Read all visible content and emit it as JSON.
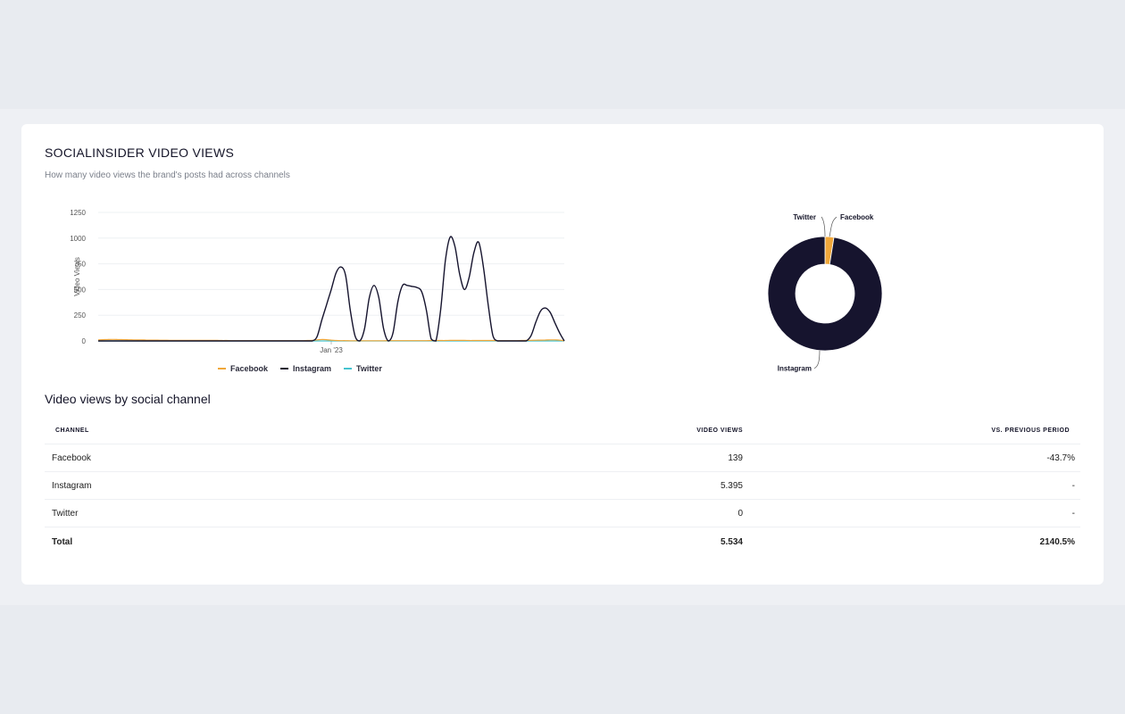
{
  "header": {
    "title": "SOCIALINSIDER VIDEO VIEWS",
    "subtitle": "How many video views the brand's posts had across channels"
  },
  "colors": {
    "facebook": "#f0a73a",
    "instagram": "#16142e",
    "twitter": "#45c3cf",
    "negative": "#f0a030"
  },
  "chart_data": [
    {
      "type": "line",
      "ylabel": "Video Views",
      "ylim": [
        0,
        1250
      ],
      "yticks": [
        "1250",
        "1000",
        "750",
        "500",
        "250",
        "0"
      ],
      "xtick_label": "Jan '23",
      "x": [
        0,
        1,
        2,
        3,
        4,
        5,
        6,
        7,
        8,
        9,
        10,
        11,
        12,
        13,
        14,
        15,
        16,
        17,
        18,
        19,
        20,
        21,
        22,
        23,
        24,
        25,
        26,
        27,
        28,
        29,
        30,
        31,
        32,
        33,
        34,
        35,
        36,
        37,
        38,
        39,
        40,
        41,
        42,
        43,
        44,
        45,
        46,
        47,
        48,
        49,
        50,
        51,
        52,
        53,
        54,
        55,
        56,
        57,
        58,
        59,
        60,
        61,
        62,
        63,
        64,
        65,
        66,
        67,
        68,
        69,
        70,
        71,
        72,
        73,
        74,
        75,
        76,
        77,
        78,
        79,
        80,
        81,
        82,
        83,
        84,
        85,
        86,
        87,
        88,
        89,
        90,
        91,
        92,
        93,
        94,
        95,
        96,
        97,
        98
      ],
      "xtick_index": 49,
      "legend": "bottom",
      "series": [
        {
          "name": "Facebook",
          "values": [
            10,
            12,
            14,
            15,
            14,
            13,
            12,
            11,
            10,
            10,
            9,
            8,
            8,
            7,
            7,
            6,
            6,
            6,
            5,
            5,
            5,
            5,
            5,
            6,
            6,
            5,
            4,
            4,
            3,
            3,
            3,
            3,
            3,
            3,
            3,
            3,
            3,
            3,
            3,
            3,
            3,
            3,
            3,
            3,
            4,
            5,
            10,
            14,
            12,
            8,
            4,
            3,
            3,
            2,
            2,
            2,
            2,
            2,
            2,
            2,
            2,
            3,
            3,
            3,
            3,
            3,
            3,
            3,
            3,
            3,
            4,
            4,
            4,
            4,
            5,
            5,
            5,
            5,
            4,
            4,
            4,
            4,
            4,
            4,
            3,
            3,
            3,
            3,
            3,
            4,
            5,
            6,
            7,
            8,
            9,
            10,
            10,
            8,
            2
          ]
        },
        {
          "name": "Instagram",
          "values": [
            0,
            0,
            0,
            0,
            0,
            0,
            0,
            0,
            0,
            0,
            0,
            0,
            0,
            0,
            0,
            0,
            0,
            0,
            0,
            0,
            0,
            0,
            0,
            0,
            0,
            0,
            0,
            0,
            0,
            0,
            0,
            0,
            0,
            0,
            0,
            0,
            0,
            0,
            0,
            0,
            0,
            0,
            0,
            0,
            0,
            0,
            40,
            200,
            350,
            500,
            660,
            720,
            640,
            300,
            50,
            0,
            120,
            420,
            540,
            420,
            120,
            0,
            80,
            380,
            540,
            540,
            530,
            520,
            480,
            300,
            20,
            0,
            300,
            780,
            1010,
            920,
            650,
            500,
            620,
            860,
            960,
            720,
            350,
            50,
            0,
            0,
            0,
            0,
            0,
            0,
            0,
            50,
            180,
            290,
            320,
            280,
            180,
            80,
            0
          ]
        },
        {
          "name": "Twitter",
          "values": [
            0,
            0,
            0,
            0,
            0,
            0,
            0,
            0,
            0,
            0,
            0,
            0,
            0,
            0,
            0,
            0,
            0,
            0,
            0,
            0,
            0,
            0,
            0,
            0,
            0,
            0,
            0,
            0,
            0,
            0,
            0,
            0,
            0,
            0,
            0,
            0,
            0,
            0,
            0,
            0,
            0,
            0,
            0,
            0,
            0,
            0,
            0,
            0,
            0,
            0,
            0,
            0,
            0,
            0,
            0,
            0,
            0,
            0,
            0,
            0,
            0,
            0,
            0,
            0,
            0,
            0,
            0,
            0,
            0,
            0,
            0,
            0,
            0,
            0,
            0,
            0,
            0,
            0,
            0,
            0,
            0,
            0,
            0,
            0,
            0,
            0,
            0,
            0,
            0,
            0,
            0,
            0,
            0,
            0,
            0,
            0,
            0,
            0,
            0
          ]
        }
      ]
    },
    {
      "type": "pie",
      "donut": true,
      "labels": [
        "Facebook",
        "Instagram",
        "Twitter"
      ],
      "values": [
        139,
        5395,
        0
      ]
    }
  ],
  "table": {
    "section_title": "Video views by social channel",
    "headers": [
      "CHANNEL",
      "VIDEO VIEWS",
      "VS. PREVIOUS PERIOD"
    ],
    "rows": [
      {
        "channel": "Facebook",
        "views": "139",
        "change": "-43.7%"
      },
      {
        "channel": "Instagram",
        "views": "5.395",
        "change": "-"
      },
      {
        "channel": "Twitter",
        "views": "0",
        "change": "-"
      }
    ],
    "total": {
      "label": "Total",
      "views": "5.534",
      "change": "2140.5%"
    }
  }
}
